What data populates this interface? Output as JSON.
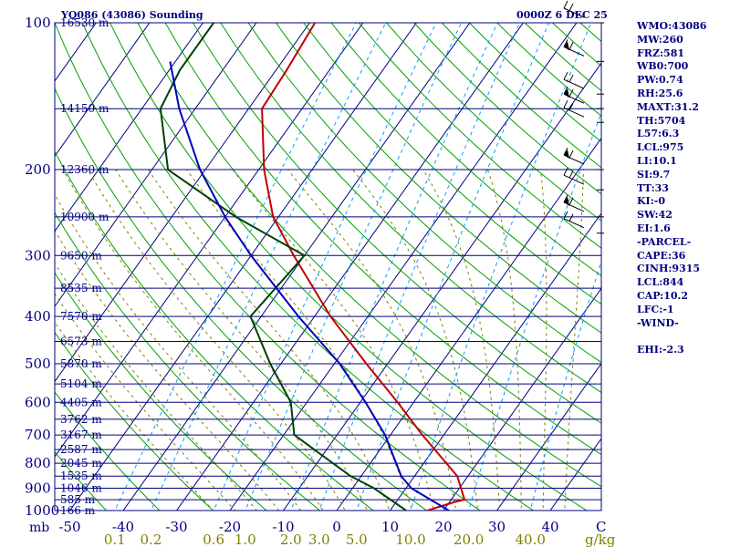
{
  "header": {
    "title_left": "YQ086 (43086) Sounding",
    "title_right": "0000Z  6 DEC 25"
  },
  "colors": {
    "isobar": "#000080",
    "isotherm": "#000080",
    "dry_adiabat": "#00a000",
    "moist_adiabat": "#808000",
    "mixing_ratio": "#00a0ff",
    "temperature": "#c00000",
    "dewpoint": "#004000",
    "parcel": "#0000c0",
    "text": "#000080",
    "axis_text": "#808000"
  },
  "indices": [
    "WMO:43086",
    "MW:260",
    "FRZ:581",
    "WB0:700",
    "PW:0.74",
    "RH:25.6",
    "MAXT:31.2",
    "TH:5704",
    "L57:6.3",
    "LCL:975",
    "LI:10.1",
    "SI:9.7",
    "TT:33",
    "KI:-0",
    "SW:42",
    "EI:1.6",
    "-PARCEL-",
    "CAPE:36",
    "CINH:9315",
    "LCL:844",
    "CAP:10.2",
    "LFC:-1",
    "-WIND-",
    "",
    "EHI:-2.3"
  ],
  "chart_data": {
    "type": "skew-t",
    "title": "YQ086 (43086) Sounding",
    "pressure_unit": "mb",
    "pressure_ticks": [
      100,
      200,
      300,
      400,
      500,
      600,
      700,
      800,
      900,
      1000
    ],
    "pressure_tick_labels": [
      "100",
      "200",
      "300",
      "400",
      "500",
      "600",
      "700",
      "800",
      "900",
      "1000"
    ],
    "temperature_ticks": [
      -50,
      -40,
      -30,
      -20,
      -10,
      0,
      10,
      20,
      30,
      40
    ],
    "temperature_tick_labels": [
      "-50",
      "-40",
      "-30",
      "-20",
      "-10",
      "0",
      "10",
      "20",
      "30",
      "40"
    ],
    "temperature_axis_label": "mb",
    "temperature_axis_end_label": "C",
    "mixing_ratio_ticks": [
      0.1,
      0.2,
      0.6,
      1.0,
      2.0,
      3.0,
      5.0,
      10.0,
      20.0,
      40.0
    ],
    "mixing_ratio_tick_labels": [
      "0.1",
      "0.2",
      "0.6",
      "1.0",
      "2.0",
      "3.0",
      "5.0",
      "10.0",
      "20.0",
      "40.0"
    ],
    "mixing_ratio_unit": "g/kg",
    "height_labels": [
      {
        "p": 100,
        "label": "16530 m"
      },
      {
        "p": 150,
        "label": "14150 m"
      },
      {
        "p": 200,
        "label": "12360 m"
      },
      {
        "p": 250,
        "label": "10900 m"
      },
      {
        "p": 300,
        "label": "9650 m"
      },
      {
        "p": 350,
        "label": "8535 m"
      },
      {
        "p": 400,
        "label": "7570 m"
      },
      {
        "p": 450,
        "label": "6573 m"
      },
      {
        "p": 500,
        "label": "5870 m"
      },
      {
        "p": 550,
        "label": "5104 m"
      },
      {
        "p": 600,
        "label": "4405 m"
      },
      {
        "p": 650,
        "label": "3762 m"
      },
      {
        "p": 700,
        "label": "3167 m"
      },
      {
        "p": 750,
        "label": "2587 m"
      },
      {
        "p": 800,
        "label": "2045 m"
      },
      {
        "p": 850,
        "label": "1535 m"
      },
      {
        "p": 900,
        "label": "1046 m"
      },
      {
        "p": 950,
        "label": "585 m"
      },
      {
        "p": 1000,
        "label": "166 m"
      }
    ],
    "temperature_profile": [
      {
        "p": 1000,
        "t": 17.0
      },
      {
        "p": 960,
        "t": 21.0
      },
      {
        "p": 950,
        "t": 22.5
      },
      {
        "p": 850,
        "t": 18.0
      },
      {
        "p": 700,
        "t": 6.0
      },
      {
        "p": 600,
        "t": -3.0
      },
      {
        "p": 500,
        "t": -14.0
      },
      {
        "p": 400,
        "t": -27.0
      },
      {
        "p": 300,
        "t": -42.0
      },
      {
        "p": 250,
        "t": -51.0
      },
      {
        "p": 200,
        "t": -59.0
      },
      {
        "p": 150,
        "t": -67.5
      },
      {
        "p": 125,
        "t": -68.0
      },
      {
        "p": 100,
        "t": -69.0
      }
    ],
    "dewpoint_profile": [
      {
        "p": 1000,
        "t": 13.0
      },
      {
        "p": 900,
        "t": 4.0
      },
      {
        "p": 850,
        "t": -2.0
      },
      {
        "p": 700,
        "t": -18.0
      },
      {
        "p": 600,
        "t": -23.0
      },
      {
        "p": 500,
        "t": -32.0
      },
      {
        "p": 400,
        "t": -42.0
      },
      {
        "p": 300,
        "t": -40.0
      },
      {
        "p": 250,
        "t": -58.0
      },
      {
        "p": 200,
        "t": -77.0
      },
      {
        "p": 150,
        "t": -86.5
      },
      {
        "p": 125,
        "t": -88.0
      },
      {
        "p": 100,
        "t": -88.0
      }
    ],
    "parcel_profile": [
      {
        "p": 1000,
        "t": 21.0
      },
      {
        "p": 900,
        "t": 11.0
      },
      {
        "p": 850,
        "t": 7.5
      },
      {
        "p": 700,
        "t": -1.0
      },
      {
        "p": 600,
        "t": -9.0
      },
      {
        "p": 500,
        "t": -19.0
      },
      {
        "p": 400,
        "t": -33.0
      },
      {
        "p": 300,
        "t": -50.0
      },
      {
        "p": 250,
        "t": -60.0
      },
      {
        "p": 200,
        "t": -71.0
      },
      {
        "p": 150,
        "t": -83.0
      },
      {
        "p": 120,
        "t": -91.0
      }
    ],
    "wind_barb_levels": [
      100,
      120,
      140,
      150,
      160,
      200,
      220,
      250,
      270
    ],
    "grid": true,
    "legend": "none"
  }
}
